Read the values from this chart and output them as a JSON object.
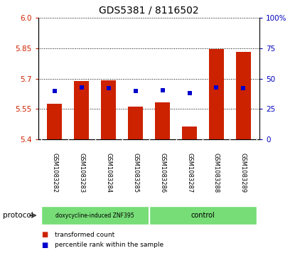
{
  "title": "GDS5381 / 8116502",
  "samples": [
    "GSM1083282",
    "GSM1083283",
    "GSM1083284",
    "GSM1083285",
    "GSM1083286",
    "GSM1083287",
    "GSM1083288",
    "GSM1083289"
  ],
  "bar_bottom": 5.4,
  "bar_tops": [
    5.575,
    5.69,
    5.692,
    5.562,
    5.583,
    5.462,
    5.848,
    5.832
  ],
  "percentile_values": [
    5.638,
    5.658,
    5.655,
    5.638,
    5.643,
    5.63,
    5.658,
    5.652
  ],
  "bar_color": "#cc2200",
  "percentile_color": "#0000cc",
  "ylim": [
    5.4,
    6.0
  ],
  "yticks_left": [
    5.4,
    5.55,
    5.7,
    5.85,
    6.0
  ],
  "yticks_right": [
    0,
    25,
    50,
    75,
    100
  ],
  "group1_label": "doxycycline-induced ZNF395",
  "group2_label": "control",
  "group_color": "#77dd77",
  "protocol_label": "protocol",
  "legend_items": [
    {
      "color": "#cc2200",
      "label": "transformed count"
    },
    {
      "color": "#0000cc",
      "label": "percentile rank within the sample"
    }
  ],
  "bar_width": 0.55,
  "background_color": "#ffffff",
  "tick_label_color_left": "#cc2200",
  "tick_label_color_right": "#0000bb",
  "sample_bg_color": "#d0d0d0",
  "title_fontsize": 10,
  "tick_fontsize": 7.5,
  "sample_fontsize": 6
}
